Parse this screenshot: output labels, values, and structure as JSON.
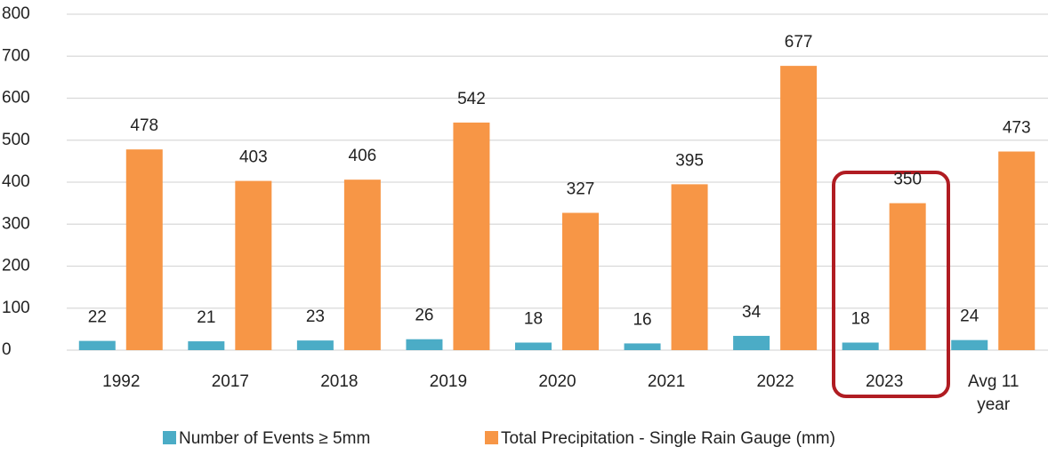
{
  "chart_data": {
    "type": "bar",
    "categories": [
      "1992",
      "2017",
      "2018",
      "2019",
      "2020",
      "2021",
      "2022",
      "2023",
      "Avg 11 year"
    ],
    "series": [
      {
        "name": "Number of Events ≥ 5mm",
        "color": "#4bacc6",
        "values": [
          22,
          21,
          23,
          26,
          18,
          16,
          34,
          18,
          24
        ]
      },
      {
        "name": "Total Precipitation - Single Rain Gauge (mm)",
        "color": "#f79646",
        "values": [
          478,
          403,
          406,
          542,
          327,
          395,
          677,
          350,
          473
        ]
      }
    ],
    "ylim": [
      0,
      800
    ],
    "yticks": [
      0,
      100,
      200,
      300,
      400,
      500,
      600,
      700,
      800
    ],
    "grid": true,
    "legend": "bottom"
  }
}
